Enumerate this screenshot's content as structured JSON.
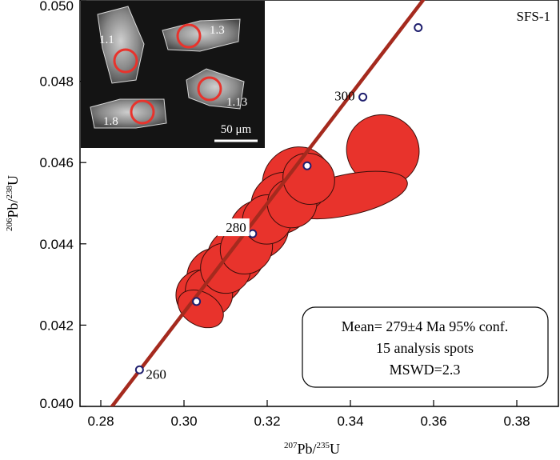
{
  "chart_data": {
    "type": "scatter",
    "title": "",
    "sample_label": "SFS-1",
    "xlabel": {
      "sup": "207",
      "main": "Pb/",
      "sup2": "235",
      "main2": "U"
    },
    "ylabel": {
      "sup": "206",
      "main": "Pb/",
      "sup2": "238",
      "main2": "U"
    },
    "xlim": [
      0.275,
      0.39
    ],
    "ylim": [
      0.04,
      0.05
    ],
    "x_ticks": [
      {
        "value": 0.28,
        "label": "0.28"
      },
      {
        "value": 0.3,
        "label": "0.30"
      },
      {
        "value": 0.32,
        "label": "0.32"
      },
      {
        "value": 0.34,
        "label": "0.34"
      },
      {
        "value": 0.36,
        "label": "0.36"
      },
      {
        "value": 0.38,
        "label": "0.38"
      }
    ],
    "y_ticks": [
      {
        "value": 0.04,
        "label": "0.040"
      },
      {
        "value": 0.042,
        "label": "0.042"
      },
      {
        "value": 0.044,
        "label": "0.044"
      },
      {
        "value": 0.046,
        "label": "0.046"
      },
      {
        "value": 0.048,
        "label": "0.048"
      },
      {
        "value": 0.05,
        "label": "0.050"
      }
    ],
    "concordia": [
      {
        "x": 0.2812,
        "y": 0.0398
      },
      {
        "x": 0.3575,
        "y": 0.05
      }
    ],
    "age_markers": [
      {
        "x": 0.2893,
        "y": 0.0409,
        "label": "260"
      },
      {
        "x": 0.303,
        "y": 0.04258,
        "label": ""
      },
      {
        "x": 0.3165,
        "y": 0.04425,
        "label": "280"
      },
      {
        "x": 0.3296,
        "y": 0.04592,
        "label": ""
      },
      {
        "x": 0.343,
        "y": 0.04761,
        "label": "300"
      },
      {
        "x": 0.3563,
        "y": 0.04932,
        "label": ""
      }
    ],
    "ellipses": [
      {
        "cx": 0.3478,
        "cy": 0.0463,
        "rx": 0.0085,
        "ry": 0.0009,
        "angle_deg": -62
      },
      {
        "cx": 0.339,
        "cy": 0.0452,
        "rx": 0.015,
        "ry": 0.0005,
        "angle_deg": -12
      },
      {
        "cx": 0.327,
        "cy": 0.04555,
        "rx": 0.0085,
        "ry": 0.0008,
        "angle_deg": -45
      },
      {
        "cx": 0.3235,
        "cy": 0.045,
        "rx": 0.0078,
        "ry": 0.00072,
        "angle_deg": -45
      },
      {
        "cx": 0.318,
        "cy": 0.04435,
        "rx": 0.0075,
        "ry": 0.0007,
        "angle_deg": -45
      },
      {
        "cx": 0.3125,
        "cy": 0.0437,
        "rx": 0.0072,
        "ry": 0.00068,
        "angle_deg": -45
      },
      {
        "cx": 0.3075,
        "cy": 0.0432,
        "rx": 0.007,
        "ry": 0.00068,
        "angle_deg": -45
      },
      {
        "cx": 0.304,
        "cy": 0.04275,
        "rx": 0.006,
        "ry": 0.0006,
        "angle_deg": -45
      },
      {
        "cx": 0.306,
        "cy": 0.0428,
        "rx": 0.0055,
        "ry": 0.0006,
        "angle_deg": -45
      },
      {
        "cx": 0.31,
        "cy": 0.0434,
        "rx": 0.006,
        "ry": 0.00062,
        "angle_deg": -45
      },
      {
        "cx": 0.315,
        "cy": 0.0439,
        "rx": 0.0065,
        "ry": 0.00062,
        "angle_deg": -45
      },
      {
        "cx": 0.32,
        "cy": 0.0446,
        "rx": 0.006,
        "ry": 0.0006,
        "angle_deg": -45
      },
      {
        "cx": 0.326,
        "cy": 0.045,
        "rx": 0.006,
        "ry": 0.0006,
        "angle_deg": -40
      },
      {
        "cx": 0.33,
        "cy": 0.0456,
        "rx": 0.006,
        "ry": 0.00065,
        "angle_deg": -50
      },
      {
        "cx": 0.304,
        "cy": 0.0424,
        "rx": 0.004,
        "ry": 0.0006,
        "angle_deg": -60
      }
    ],
    "colors": {
      "concordia": "#a52a1e",
      "ellipse_fill": "#e8332c",
      "marker_stroke": "#1f1f6e",
      "spot_circle": "#e8332c"
    },
    "result_box": {
      "line1": "Mean= 279±4 Ma 95% conf.",
      "line2": "15 analysis spots",
      "line3": "MSWD=2.3"
    }
  },
  "inset": {
    "spots": [
      {
        "label": "1.1"
      },
      {
        "label": "1.3"
      },
      {
        "label": "1.8"
      },
      {
        "label": "1.13"
      }
    ],
    "scale_bar_label": "50 μm"
  }
}
